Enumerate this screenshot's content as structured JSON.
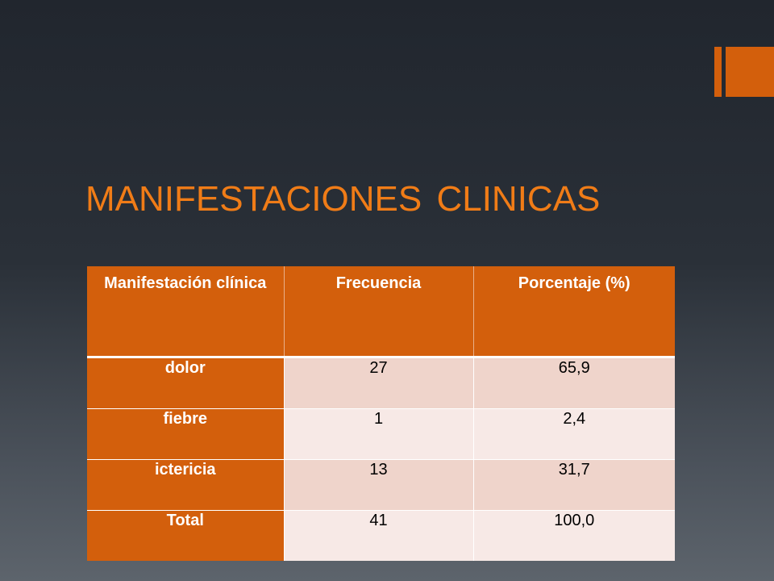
{
  "colors": {
    "accent": "#d35f0c",
    "title": "#f07c17",
    "row_odd": "#efd4cb",
    "row_even": "#f7e9e6"
  },
  "title": "MANIFESTACIONES  CLINICAS",
  "table": {
    "headers": [
      "Manifestación clínica",
      "Frecuencia",
      "Porcentaje (%)"
    ],
    "rows": [
      [
        "dolor",
        "27",
        "65,9"
      ],
      [
        "fiebre",
        "1",
        "2,4"
      ],
      [
        "ictericia",
        "13",
        "31,7"
      ],
      [
        "Total",
        "41",
        "100,0"
      ]
    ]
  }
}
